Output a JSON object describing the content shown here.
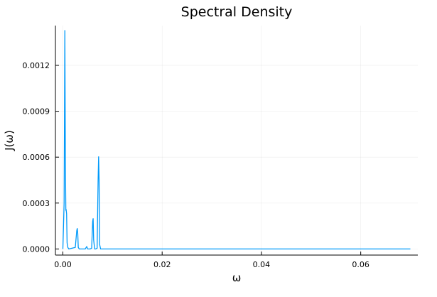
{
  "chart_data": {
    "type": "line",
    "title": "Spectral Density",
    "xlabel": "ω",
    "ylabel": "J(ω)",
    "xlim": [
      -0.0015,
      0.0715
    ],
    "ylim": [
      -4e-05,
      0.00146
    ],
    "xticks": [
      0.0,
      0.02,
      0.04,
      0.06
    ],
    "xtick_labels": [
      "0.00",
      "0.02",
      "0.04",
      "0.06"
    ],
    "yticks": [
      0.0,
      0.0003,
      0.0006,
      0.0009,
      0.0012
    ],
    "ytick_labels": [
      "0.0000",
      "0.0003",
      "0.0006",
      "0.0009",
      "0.0012"
    ],
    "grid": true,
    "legend": "none",
    "line_color": "#009AFA",
    "series": [
      {
        "x": [
          0.0,
          0.00025,
          0.00035,
          0.0004,
          0.0005,
          0.0006,
          0.00065,
          0.00075,
          0.00085,
          0.001,
          0.0012,
          0.0025,
          0.0028,
          0.0029,
          0.003,
          0.0031,
          0.0033,
          0.0045,
          0.0048,
          0.005,
          0.0055,
          0.0058,
          0.006,
          0.0061,
          0.0062,
          0.0064,
          0.0066,
          0.0069,
          0.0071,
          0.0072,
          0.0073,
          0.0074,
          0.0076,
          0.01,
          0.03,
          0.05,
          0.07
        ],
        "values": [
          0.0,
          0.0003,
          0.00105,
          0.00143,
          0.0006,
          0.00025,
          0.00026,
          0.00023,
          4e-05,
          1e-05,
          0.0,
          1e-05,
          0.00012,
          0.000135,
          0.0001,
          1e-05,
          0.0,
          0.0,
          1.5e-05,
          0.0,
          0.0,
          5e-06,
          0.00018,
          0.0002,
          6e-05,
          0.0,
          0.0,
          5e-06,
          0.00045,
          0.000605,
          0.00045,
          3e-05,
          0.0,
          0.0,
          0.0,
          0.0,
          0.0
        ]
      }
    ]
  }
}
